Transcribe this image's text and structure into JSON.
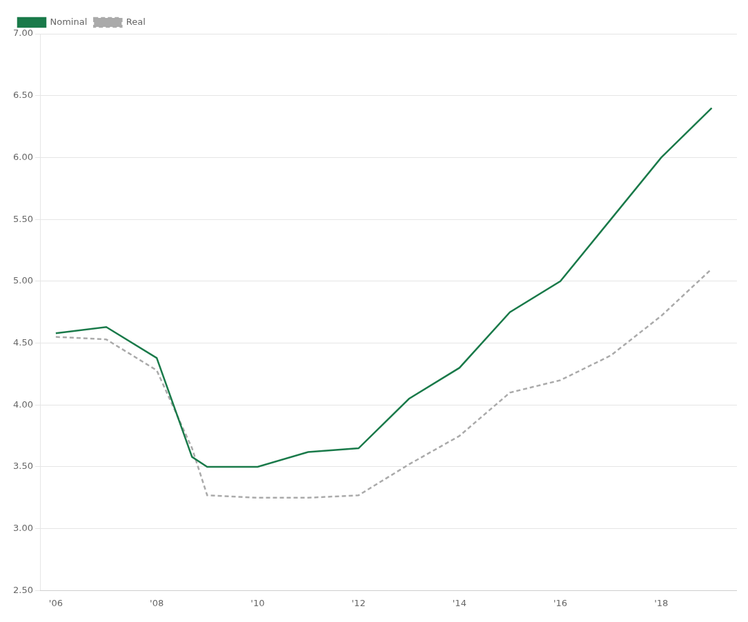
{
  "chart_data": {
    "type": "line",
    "x": [
      2006,
      2007,
      2008,
      2008.7,
      2009,
      2010,
      2011,
      2012,
      2013,
      2014,
      2015,
      2016,
      2017,
      2018,
      2019
    ],
    "series": [
      {
        "name": "Nominal",
        "color": "#1a7a4a",
        "line_style": "solid",
        "values": [
          4.58,
          4.63,
          4.38,
          3.58,
          3.5,
          3.5,
          3.62,
          3.65,
          4.05,
          4.3,
          4.75,
          5.0,
          5.5,
          6.0,
          6.4
        ]
      },
      {
        "name": "Real",
        "color": "#aaaaaa",
        "line_style": "dashed",
        "values": [
          4.55,
          4.53,
          4.28,
          3.65,
          3.27,
          3.25,
          3.25,
          3.27,
          3.52,
          3.75,
          4.1,
          4.2,
          4.4,
          4.72,
          5.1
        ]
      }
    ],
    "xlim": [
      2005.7,
      2019.5
    ],
    "xticks": [
      {
        "value": 2006,
        "label": "'06"
      },
      {
        "value": 2008,
        "label": "'08"
      },
      {
        "value": 2010,
        "label": "'10"
      },
      {
        "value": 2012,
        "label": "'12"
      },
      {
        "value": 2014,
        "label": "'14"
      },
      {
        "value": 2016,
        "label": "'16"
      },
      {
        "value": 2018,
        "label": "'18"
      }
    ],
    "ylim": [
      2.5,
      7.0
    ],
    "yticks": [
      {
        "value": 2.5,
        "label": "2.50"
      },
      {
        "value": 3.0,
        "label": "3.00"
      },
      {
        "value": 3.5,
        "label": "3.50"
      },
      {
        "value": 4.0,
        "label": "4.00"
      },
      {
        "value": 4.5,
        "label": "4.50"
      },
      {
        "value": 5.0,
        "label": "5.00"
      },
      {
        "value": 5.5,
        "label": "5.50"
      },
      {
        "value": 6.0,
        "label": "6.00"
      },
      {
        "value": 6.5,
        "label": "6.50"
      },
      {
        "value": 7.0,
        "label": "7.00"
      }
    ],
    "grid": "y",
    "legend": "upper left"
  }
}
